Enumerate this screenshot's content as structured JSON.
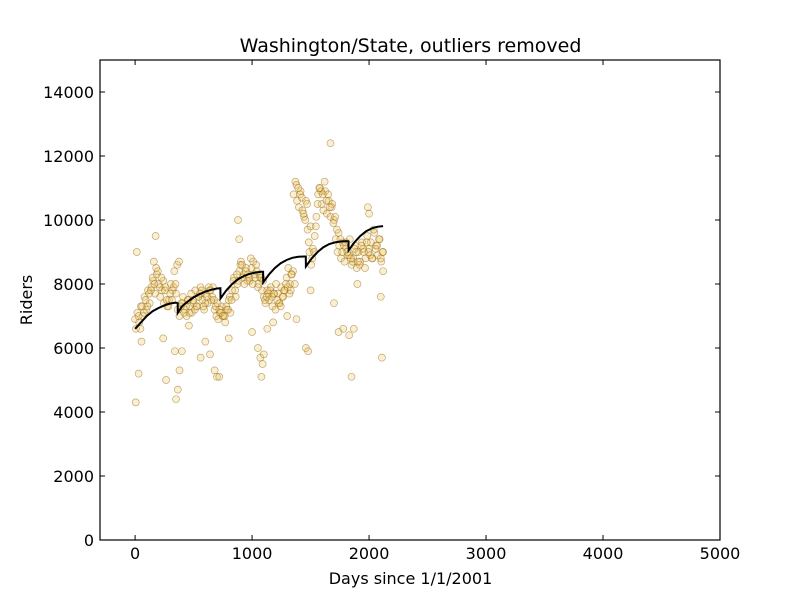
{
  "chart_data": {
    "type": "scatter",
    "title": "Washington/State, outliers removed",
    "xlabel": "Days since 1/1/2001",
    "ylabel": "Riders",
    "xlim": [
      -300,
      5000
    ],
    "ylim": [
      0,
      15000
    ],
    "x_ticks": [
      0,
      1000,
      2000,
      3000,
      4000,
      5000
    ],
    "y_ticks": [
      0,
      2000,
      4000,
      6000,
      8000,
      10000,
      12000,
      14000
    ],
    "grid": false,
    "colors": {
      "points": "#f5c15a",
      "point_edge": "#8a6a10",
      "fit_line": "#000000"
    },
    "series": [
      {
        "type": "scatter",
        "x": [
          0,
          8,
          20,
          35,
          50,
          65,
          80,
          95,
          110,
          125,
          140,
          155,
          170,
          185,
          200,
          215,
          230,
          245,
          260,
          275,
          290,
          305,
          320,
          335,
          350,
          365,
          380,
          395,
          410,
          425,
          440,
          455,
          470,
          485,
          500,
          515,
          530,
          545,
          560,
          575,
          590,
          605,
          620,
          635,
          650,
          665,
          680,
          695,
          710,
          725,
          740,
          755,
          770,
          785,
          800,
          815,
          830,
          845,
          860,
          875,
          890,
          905,
          920,
          935,
          950,
          965,
          980,
          995,
          1010,
          1025,
          1040,
          1055,
          1070,
          1085,
          1100,
          1115,
          1130,
          1145,
          1160,
          1175,
          1190,
          1205,
          1220,
          1235,
          1250,
          1265,
          1280,
          1295,
          1310,
          1325,
          1340,
          1355,
          1370,
          1385,
          1400,
          1415,
          1430,
          1445,
          1460,
          1475,
          1490,
          1505,
          1520,
          1535,
          1550,
          1565,
          1580,
          1595,
          1610,
          1625,
          1640,
          1655,
          1670,
          1685,
          1700,
          1715,
          1730,
          1745,
          1760,
          1775,
          1790,
          1805,
          1820,
          1835,
          1850,
          1865,
          1880,
          1895,
          1910,
          1925,
          1940,
          1955,
          1970,
          1985,
          2000,
          2015,
          2030,
          2045,
          2060,
          2075,
          2090,
          2105,
          2120,
          30,
          60,
          90,
          120,
          150,
          180,
          210,
          240,
          270,
          300,
          330,
          360,
          390,
          420,
          450,
          480,
          510,
          540,
          570,
          600,
          630,
          660,
          690,
          720,
          750,
          780,
          810,
          840,
          870,
          900,
          930,
          960,
          990,
          1020,
          1050,
          1080,
          1110,
          1140,
          1170,
          1200,
          1230,
          1260,
          1290,
          1320,
          1350,
          1380,
          1410,
          1440,
          1470,
          1500,
          1530,
          1560,
          1590,
          1620,
          1650,
          1680,
          1710,
          1740,
          1770,
          1800,
          1830,
          1860,
          1890,
          1920,
          1950,
          1980,
          2010,
          2040,
          2070,
          2100,
          15,
          45,
          75,
          105,
          135,
          165,
          195,
          225,
          255,
          285,
          315,
          345,
          375,
          405,
          435,
          465,
          495,
          525,
          555,
          585,
          615,
          645,
          675,
          705,
          735,
          765,
          795,
          825,
          855,
          885,
          915,
          945,
          975,
          1005,
          1035,
          1065,
          1095,
          1125,
          1155,
          1185,
          1215,
          1245,
          1275,
          1305,
          1335,
          1365,
          1395,
          1425,
          1455,
          1485,
          1515,
          1545,
          1575,
          1605,
          1635,
          1665,
          1695,
          1725,
          1755,
          1785,
          1815,
          1845,
          1875,
          1905,
          1935,
          1965,
          1995,
          2025,
          2055,
          2085,
          2115,
          5,
          30,
          55,
          160,
          175,
          240,
          265,
          340,
          350,
          365,
          380,
          400,
          460,
          560,
          600,
          640,
          680,
          700,
          720,
          800,
          880,
          890,
          1000,
          1050,
          1070,
          1080,
          1090,
          1100,
          1130,
          1180,
          1300,
          1330,
          1380,
          1460,
          1480,
          1500,
          1670,
          1700,
          1740,
          1780,
          1830,
          1850,
          1870,
          1900,
          1990,
          2000,
          2100,
          2110,
          2120
        ],
        "y": [
          6900,
          6600,
          7100,
          6800,
          7300,
          7000,
          7600,
          7200,
          7800,
          7400,
          7900,
          8100,
          7700,
          8300,
          8000,
          7600,
          7800,
          7400,
          7900,
          7300,
          7500,
          8000,
          7800,
          8400,
          7700,
          7200,
          7000,
          7400,
          7600,
          7200,
          7000,
          7500,
          7300,
          7100,
          7400,
          7800,
          7300,
          7600,
          7900,
          7500,
          7200,
          7700,
          7400,
          7800,
          7500,
          7900,
          7200,
          7000,
          6900,
          7100,
          7300,
          7000,
          6800,
          7200,
          7500,
          7100,
          7800,
          8200,
          7600,
          8000,
          8400,
          8700,
          8200,
          8000,
          8500,
          8300,
          8100,
          8500,
          8700,
          8200,
          8400,
          8000,
          8200,
          7800,
          7600,
          7400,
          7800,
          7500,
          7900,
          7300,
          7700,
          8000,
          7700,
          7400,
          7900,
          7600,
          7800,
          8200,
          8500,
          8000,
          8300,
          10800,
          11200,
          10600,
          10400,
          10900,
          10300,
          10100,
          10600,
          9700,
          9000,
          8600,
          9100,
          9500,
          10100,
          10800,
          11000,
          10500,
          10300,
          10900,
          10200,
          10600,
          10100,
          10500,
          10000,
          9400,
          9000,
          9200,
          8800,
          9300,
          8700,
          9100,
          8900,
          9400,
          8600,
          8800,
          9200,
          8500,
          9000,
          8700,
          9300,
          9000,
          8800,
          9500,
          9100,
          9300,
          8800,
          9600,
          9200,
          8900,
          9400,
          8700,
          9000,
          7000,
          7300,
          7500,
          7700,
          8200,
          8500,
          7900,
          8100,
          7500,
          7700,
          7900,
          8600,
          7300,
          7100,
          7500,
          7700,
          7200,
          7600,
          7800,
          7400,
          7900,
          7600,
          7300,
          7200,
          7000,
          7300,
          7600,
          8100,
          8300,
          8600,
          8300,
          8100,
          8800,
          8300,
          7900,
          8200,
          7500,
          7700,
          7600,
          7200,
          7400,
          7600,
          8000,
          7700,
          8400,
          11100,
          10800,
          10200,
          10500,
          9800,
          9000,
          10500,
          10900,
          11200,
          10800,
          10400,
          10100,
          9600,
          9000,
          9300,
          8900,
          8700,
          9000,
          8600,
          9100,
          9300,
          8900,
          9700,
          9200,
          8800,
          9000,
          6600,
          7100,
          7300,
          7800,
          8000,
          8400,
          8200,
          7800,
          7300,
          7500,
          8000,
          8700,
          7400,
          7300,
          7100,
          7500,
          7300,
          7700,
          7300,
          7600,
          7800,
          7500,
          7400,
          7100,
          7000,
          7200,
          7500,
          7800,
          8100,
          8600,
          8400,
          8200,
          8000,
          8600,
          8300,
          8100,
          7600,
          7800,
          7700,
          7500,
          7300,
          7800,
          7900,
          8300,
          8000,
          11000,
          10700,
          10000,
          9300,
          8800,
          9800,
          11000,
          10800,
          10600,
          10400,
          9900,
          9700,
          9400,
          9200,
          9000,
          8800,
          9100,
          8700,
          9200,
          8500,
          9000,
          8800,
          9100,
          9400,
          9000,
          4300,
          5200,
          6200,
          8700,
          9500,
          6300,
          5000,
          5900,
          4400,
          4700,
          5300,
          5900,
          6700,
          5700,
          6200,
          5800,
          5300,
          5100,
          5100,
          6300,
          10000,
          9400,
          6500,
          6000,
          5700,
          5100,
          5500,
          5800,
          6600,
          6800,
          7000,
          7800,
          6900,
          6000,
          5900,
          7800,
          12400,
          7400,
          6500,
          6600,
          6400,
          5100,
          6600,
          8000,
          10400,
          10200,
          7600,
          5700,
          8400
        ]
      },
      {
        "type": "line",
        "name": "fit",
        "x": [
          0,
          50,
          100,
          150,
          200,
          250,
          300,
          350,
          364,
          365,
          400,
          450,
          500,
          550,
          600,
          650,
          700,
          729,
          730,
          780,
          830,
          880,
          930,
          980,
          1030,
          1080,
          1094,
          1095,
          1145,
          1195,
          1245,
          1295,
          1345,
          1395,
          1445,
          1459,
          1460,
          1510,
          1560,
          1610,
          1660,
          1710,
          1760,
          1810,
          1824,
          1825,
          1875,
          1925,
          1975,
          2025,
          2075,
          2120
        ],
        "y": [
          6600,
          6800,
          7000,
          7150,
          7250,
          7330,
          7390,
          7420,
          7400,
          7100,
          7300,
          7450,
          7580,
          7680,
          7760,
          7820,
          7860,
          7870,
          7550,
          7800,
          8000,
          8150,
          8250,
          8320,
          8360,
          8380,
          8380,
          8050,
          8300,
          8500,
          8650,
          8750,
          8820,
          8850,
          8860,
          8860,
          8550,
          8800,
          9000,
          9150,
          9250,
          9300,
          9330,
          9340,
          9330,
          9050,
          9300,
          9500,
          9650,
          9740,
          9790,
          9810
        ]
      }
    ]
  }
}
